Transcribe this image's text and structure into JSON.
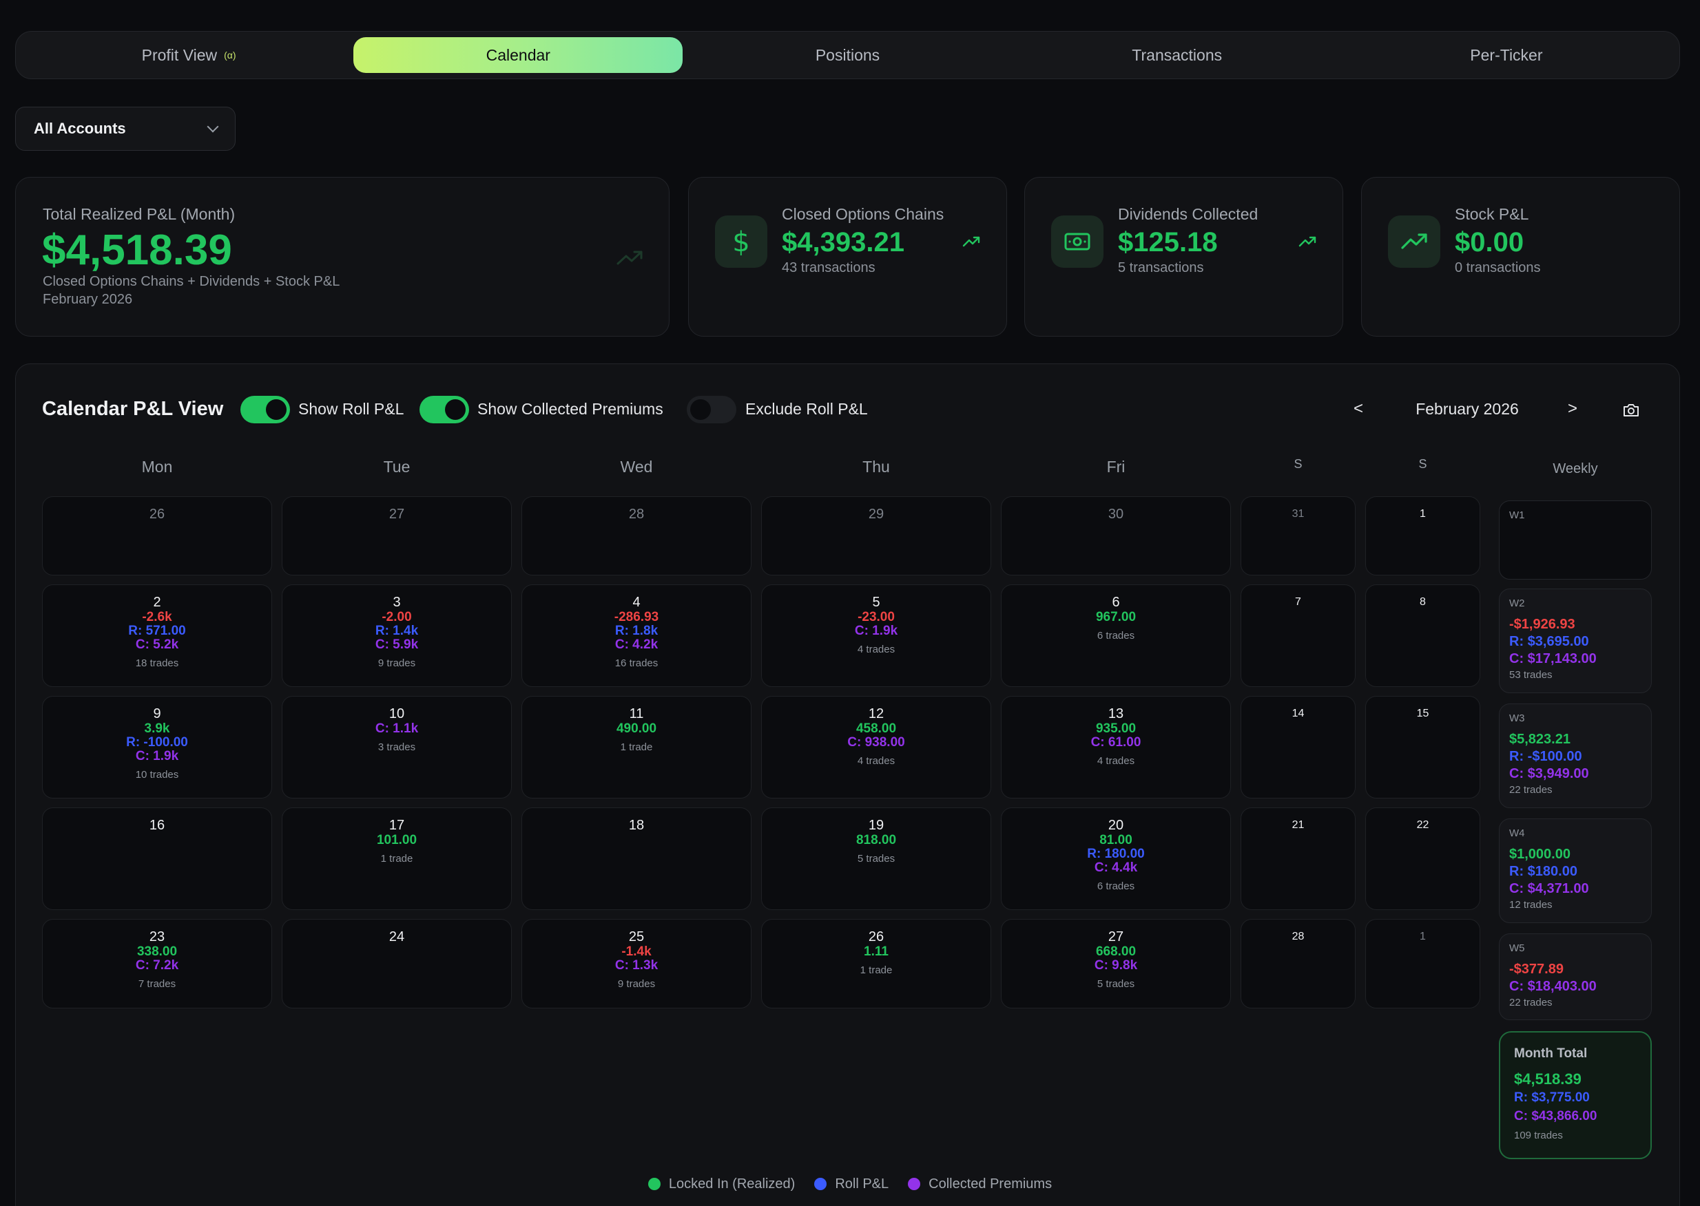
{
  "tabs": {
    "profit": "Profit View",
    "profit_badge": "(α)",
    "calendar": "Calendar",
    "positions": "Positions",
    "transactions": "Transactions",
    "per_ticker": "Per-Ticker"
  },
  "account_select": {
    "value": "All Accounts"
  },
  "stats": {
    "total": {
      "label": "Total Realized P&L (Month)",
      "value": "$4,518.39",
      "desc": "Closed Options Chains + Dividends + Stock P&L",
      "period": "February 2026"
    },
    "options": {
      "label": "Closed Options Chains",
      "value": "$4,393.21",
      "sub": "43 transactions"
    },
    "dividends": {
      "label": "Dividends Collected",
      "value": "$125.18",
      "sub": "5 transactions"
    },
    "stock": {
      "label": "Stock P&L",
      "value": "$0.00",
      "sub": "0 transactions"
    }
  },
  "calendar": {
    "title": "Calendar P&L View",
    "toggles": {
      "roll": "Show Roll P&L",
      "premiums": "Show Collected Premiums",
      "exclude": "Exclude Roll P&L"
    },
    "prev": "<",
    "next": ">",
    "month": "February 2026",
    "dow": {
      "mon": "Mon",
      "tue": "Tue",
      "wed": "Wed",
      "thu": "Thu",
      "fri": "Fri",
      "sat": "S",
      "sun": "S",
      "weekly": "Weekly"
    },
    "days": [
      {
        "d": "26",
        "muted": true,
        "vals": [],
        "trades": ""
      },
      {
        "d": "27",
        "muted": true,
        "vals": [],
        "trades": ""
      },
      {
        "d": "28",
        "muted": true,
        "vals": [],
        "trades": ""
      },
      {
        "d": "29",
        "muted": true,
        "vals": [],
        "trades": ""
      },
      {
        "d": "30",
        "muted": true,
        "vals": [],
        "trades": ""
      },
      {
        "d": "31",
        "muted": true,
        "vals": [],
        "trades": ""
      },
      {
        "d": "1",
        "muted": false,
        "vals": [],
        "trades": ""
      },
      {
        "d": "2",
        "muted": false,
        "vals": [
          {
            "c": "r",
            "t": "-2.6k"
          },
          {
            "c": "b",
            "t": "R: 571.00"
          },
          {
            "c": "p",
            "t": "C: 5.2k"
          }
        ],
        "trades": "18 trades"
      },
      {
        "d": "3",
        "muted": false,
        "vals": [
          {
            "c": "r",
            "t": "-2.00"
          },
          {
            "c": "b",
            "t": "R: 1.4k"
          },
          {
            "c": "p",
            "t": "C: 5.9k"
          }
        ],
        "trades": "9 trades"
      },
      {
        "d": "4",
        "muted": false,
        "vals": [
          {
            "c": "r",
            "t": "-286.93"
          },
          {
            "c": "b",
            "t": "R: 1.8k"
          },
          {
            "c": "p",
            "t": "C: 4.2k"
          }
        ],
        "trades": "16 trades"
      },
      {
        "d": "5",
        "muted": false,
        "vals": [
          {
            "c": "r",
            "t": "-23.00"
          },
          {
            "c": "p",
            "t": "C: 1.9k"
          }
        ],
        "trades": "4 trades"
      },
      {
        "d": "6",
        "muted": false,
        "vals": [
          {
            "c": "g",
            "t": "967.00"
          }
        ],
        "trades": "6 trades"
      },
      {
        "d": "7",
        "muted": false,
        "vals": [],
        "trades": ""
      },
      {
        "d": "8",
        "muted": false,
        "vals": [],
        "trades": ""
      },
      {
        "d": "9",
        "muted": false,
        "vals": [
          {
            "c": "g",
            "t": "3.9k"
          },
          {
            "c": "b",
            "t": "R: -100.00"
          },
          {
            "c": "p",
            "t": "C: 1.9k"
          }
        ],
        "trades": "10 trades"
      },
      {
        "d": "10",
        "muted": false,
        "vals": [
          {
            "c": "p",
            "t": "C: 1.1k"
          }
        ],
        "trades": "3 trades"
      },
      {
        "d": "11",
        "muted": false,
        "vals": [
          {
            "c": "g",
            "t": "490.00"
          }
        ],
        "trades": "1 trade"
      },
      {
        "d": "12",
        "muted": false,
        "vals": [
          {
            "c": "g",
            "t": "458.00"
          },
          {
            "c": "p",
            "t": "C: 938.00"
          }
        ],
        "trades": "4 trades"
      },
      {
        "d": "13",
        "muted": false,
        "vals": [
          {
            "c": "g",
            "t": "935.00"
          },
          {
            "c": "p",
            "t": "C: 61.00"
          }
        ],
        "trades": "4 trades"
      },
      {
        "d": "14",
        "muted": false,
        "vals": [],
        "trades": ""
      },
      {
        "d": "15",
        "muted": false,
        "vals": [],
        "trades": ""
      },
      {
        "d": "16",
        "muted": false,
        "vals": [],
        "trades": ""
      },
      {
        "d": "17",
        "muted": false,
        "vals": [
          {
            "c": "g",
            "t": "101.00"
          }
        ],
        "trades": "1 trade"
      },
      {
        "d": "18",
        "muted": false,
        "vals": [],
        "trades": ""
      },
      {
        "d": "19",
        "muted": false,
        "vals": [
          {
            "c": "g",
            "t": "818.00"
          }
        ],
        "trades": "5 trades"
      },
      {
        "d": "20",
        "muted": false,
        "vals": [
          {
            "c": "g",
            "t": "81.00"
          },
          {
            "c": "b",
            "t": "R: 180.00"
          },
          {
            "c": "p",
            "t": "C: 4.4k"
          }
        ],
        "trades": "6 trades"
      },
      {
        "d": "21",
        "muted": false,
        "vals": [],
        "trades": ""
      },
      {
        "d": "22",
        "muted": false,
        "vals": [],
        "trades": ""
      },
      {
        "d": "23",
        "muted": false,
        "vals": [
          {
            "c": "g",
            "t": "338.00"
          },
          {
            "c": "p",
            "t": "C: 7.2k"
          }
        ],
        "trades": "7 trades"
      },
      {
        "d": "24",
        "muted": false,
        "vals": [],
        "trades": ""
      },
      {
        "d": "25",
        "muted": false,
        "vals": [
          {
            "c": "r",
            "t": "-1.4k"
          },
          {
            "c": "p",
            "t": "C: 1.3k"
          }
        ],
        "trades": "9 trades"
      },
      {
        "d": "26",
        "muted": false,
        "vals": [
          {
            "c": "g",
            "t": "1.11"
          }
        ],
        "trades": "1 trade"
      },
      {
        "d": "27",
        "muted": false,
        "vals": [
          {
            "c": "g",
            "t": "668.00"
          },
          {
            "c": "p",
            "t": "C: 9.8k"
          }
        ],
        "trades": "5 trades"
      },
      {
        "d": "28",
        "muted": false,
        "vals": [],
        "trades": ""
      },
      {
        "d": "1",
        "muted": true,
        "vals": [],
        "trades": ""
      }
    ],
    "weekly": [
      {
        "label": "W1",
        "vals": [],
        "trades": ""
      },
      {
        "label": "W2",
        "vals": [
          {
            "c": "r",
            "t": "-$1,926.93"
          },
          {
            "c": "b",
            "t": "R: $3,695.00"
          },
          {
            "c": "p",
            "t": "C: $17,143.00"
          }
        ],
        "trades": "53 trades"
      },
      {
        "label": "W3",
        "vals": [
          {
            "c": "g",
            "t": "$5,823.21"
          },
          {
            "c": "b",
            "t": "R: -$100.00"
          },
          {
            "c": "p",
            "t": "C: $3,949.00"
          }
        ],
        "trades": "22 trades"
      },
      {
        "label": "W4",
        "vals": [
          {
            "c": "g",
            "t": "$1,000.00"
          },
          {
            "c": "b",
            "t": "R: $180.00"
          },
          {
            "c": "p",
            "t": "C: $4,371.00"
          }
        ],
        "trades": "12 trades"
      },
      {
        "label": "W5",
        "vals": [
          {
            "c": "r",
            "t": "-$377.89"
          },
          {
            "c": "p",
            "t": "C: $18,403.00"
          }
        ],
        "trades": "22 trades"
      }
    ],
    "month_total": {
      "label": "Month Total",
      "realized": "$4,518.39",
      "roll": "R: $3,775.00",
      "collected": "C: $43,866.00",
      "trades": "109 trades"
    },
    "legend": {
      "realized": "Locked In (Realized)",
      "roll": "Roll P&L",
      "collected": "Collected Premiums"
    }
  },
  "colors": {
    "accent": "#22c55e",
    "negative": "#ef4444",
    "roll": "#3b5bff",
    "collected": "#9333ea"
  }
}
